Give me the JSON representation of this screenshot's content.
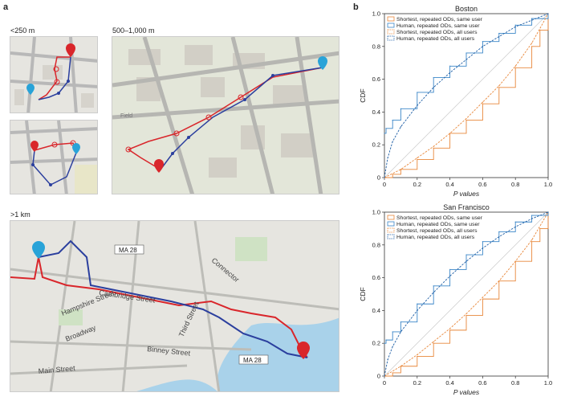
{
  "panels": {
    "a": {
      "letter": "a"
    },
    "b": {
      "letter": "b"
    }
  },
  "maps": {
    "small_label": "<250 m",
    "mid_label": "500–1,000 m",
    "large_label": ">1 km",
    "street_labels": [
      "Cambridge Street",
      "Hampshire Street",
      "Broadway",
      "Binney Street",
      "Main Street",
      "Third Street",
      "Connector",
      "MA 28",
      "MA 28",
      "Field"
    ],
    "colors": {
      "shortest": "#d9262b",
      "human": "#2b3f9e",
      "pin_red": "#d9262b",
      "pin_blue": "#29a3d8"
    }
  },
  "chart_data": [
    {
      "type": "line",
      "title": "Boston",
      "xlabel": "P values",
      "ylabel": "CDF",
      "xlim": [
        0,
        1
      ],
      "ylim": [
        0,
        1
      ],
      "xticks": [
        "0",
        "0.2",
        "0.4",
        "0.6",
        "0.8",
        "1.0"
      ],
      "yticks": [
        "0",
        "0.2",
        "0.4",
        "0.6",
        "0.8",
        "1.0"
      ],
      "legend_position": "top-left",
      "series": [
        {
          "name": "Shortest, repeated ODs, same user",
          "color": "#e8873a",
          "style": "step",
          "x": [
            0,
            0.05,
            0.1,
            0.2,
            0.3,
            0.4,
            0.5,
            0.6,
            0.7,
            0.8,
            0.9,
            0.95,
            1.0
          ],
          "y": [
            0,
            0.02,
            0.05,
            0.11,
            0.18,
            0.27,
            0.35,
            0.45,
            0.55,
            0.67,
            0.8,
            0.9,
            1.0
          ]
        },
        {
          "name": "Human, repeated ODs, same user",
          "color": "#3a86c8",
          "style": "step",
          "x": [
            0,
            0.01,
            0.05,
            0.1,
            0.2,
            0.3,
            0.4,
            0.5,
            0.6,
            0.7,
            0.8,
            0.9,
            1.0
          ],
          "y": [
            0.27,
            0.3,
            0.35,
            0.42,
            0.52,
            0.61,
            0.68,
            0.76,
            0.83,
            0.88,
            0.93,
            0.97,
            1.0
          ]
        },
        {
          "name": "Shortest, repeated ODs, all users",
          "color": "#e8873a",
          "style": "dashed",
          "x": [
            0,
            0.1,
            0.2,
            0.3,
            0.4,
            0.5,
            0.6,
            0.7,
            0.8,
            0.9,
            1.0
          ],
          "y": [
            0,
            0.05,
            0.12,
            0.19,
            0.27,
            0.36,
            0.46,
            0.56,
            0.68,
            0.82,
            1.0
          ]
        },
        {
          "name": "Human, repeated ODs, all users",
          "color": "#1f5fa6",
          "style": "dashed",
          "x": [
            0,
            0.02,
            0.05,
            0.1,
            0.2,
            0.3,
            0.4,
            0.5,
            0.6,
            0.7,
            0.8,
            0.9,
            1.0
          ],
          "y": [
            0,
            0.12,
            0.22,
            0.31,
            0.44,
            0.55,
            0.64,
            0.72,
            0.8,
            0.86,
            0.92,
            0.96,
            1.0
          ]
        }
      ]
    },
    {
      "type": "line",
      "title": "San Francisco",
      "xlabel": "P values",
      "ylabel": "CDF",
      "xlim": [
        0,
        1
      ],
      "ylim": [
        0,
        1
      ],
      "xticks": [
        "0",
        "0.2",
        "0.4",
        "0.6",
        "0.8",
        "1.0"
      ],
      "yticks": [
        "0",
        "0.2",
        "0.4",
        "0.6",
        "0.8",
        "1.0"
      ],
      "legend_position": "top-left",
      "series": [
        {
          "name": "Shortest, repeated ODs, same user",
          "color": "#e8873a",
          "style": "step",
          "x": [
            0,
            0.05,
            0.1,
            0.2,
            0.3,
            0.4,
            0.5,
            0.6,
            0.7,
            0.8,
            0.9,
            0.95,
            1.0
          ],
          "y": [
            0,
            0.02,
            0.06,
            0.12,
            0.2,
            0.28,
            0.37,
            0.47,
            0.58,
            0.7,
            0.82,
            0.9,
            1.0
          ]
        },
        {
          "name": "Human, repeated ODs, same user",
          "color": "#3a86c8",
          "style": "step",
          "x": [
            0,
            0.01,
            0.05,
            0.1,
            0.2,
            0.3,
            0.4,
            0.5,
            0.6,
            0.7,
            0.8,
            0.9,
            1.0
          ],
          "y": [
            0.2,
            0.22,
            0.27,
            0.33,
            0.44,
            0.55,
            0.65,
            0.74,
            0.82,
            0.88,
            0.94,
            0.98,
            1.0
          ]
        },
        {
          "name": "Shortest, repeated ODs, all users",
          "color": "#e8873a",
          "style": "dashed",
          "x": [
            0,
            0.1,
            0.2,
            0.3,
            0.4,
            0.5,
            0.6,
            0.7,
            0.8,
            0.9,
            1.0
          ],
          "y": [
            0,
            0.06,
            0.13,
            0.21,
            0.29,
            0.38,
            0.48,
            0.58,
            0.7,
            0.83,
            1.0
          ]
        },
        {
          "name": "Human, repeated ODs, all users",
          "color": "#1f5fa6",
          "style": "dashed",
          "x": [
            0,
            0.02,
            0.05,
            0.1,
            0.2,
            0.3,
            0.4,
            0.5,
            0.6,
            0.7,
            0.8,
            0.9,
            1.0
          ],
          "y": [
            0,
            0.1,
            0.18,
            0.27,
            0.4,
            0.51,
            0.61,
            0.7,
            0.78,
            0.85,
            0.91,
            0.96,
            1.0
          ]
        }
      ]
    }
  ]
}
